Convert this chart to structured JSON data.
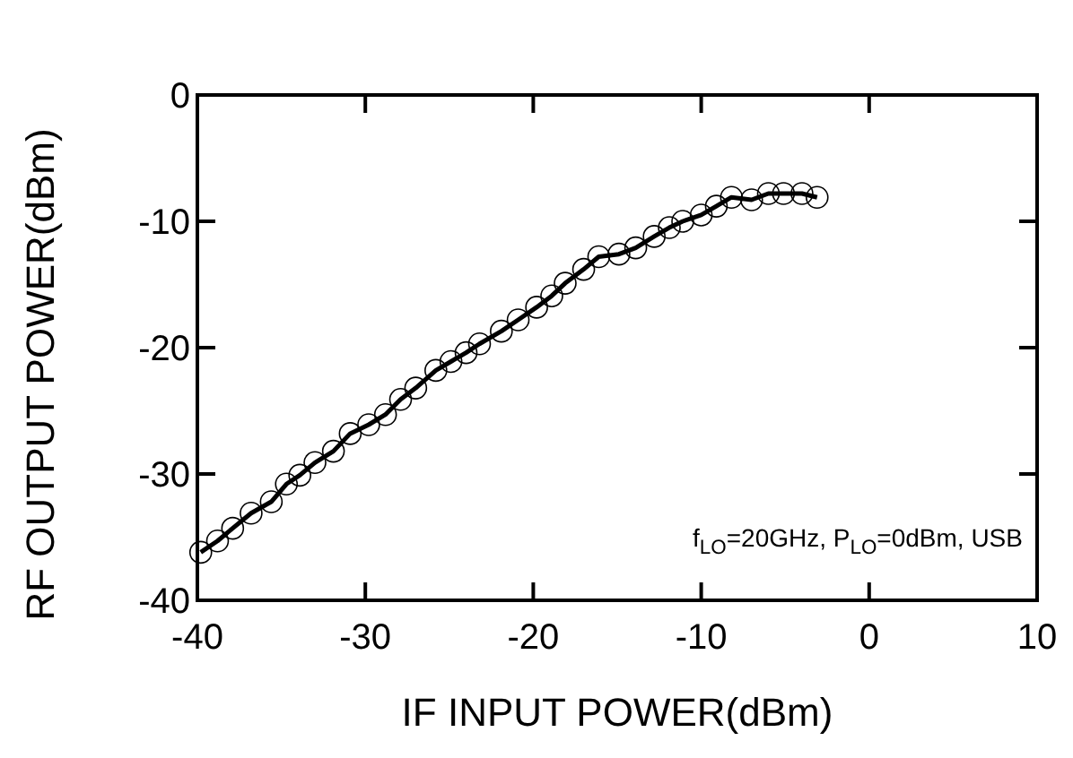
{
  "chart_data": {
    "type": "line",
    "xlabel": "IF INPUT POWER(dBm)",
    "ylabel": "RF OUTPUT POWER(dBm)",
    "x": [
      -39.8,
      -38.8,
      -37.9,
      -36.8,
      -35.6,
      -34.7,
      -33.9,
      -33,
      -31.9,
      -30.9,
      -29.8,
      -28.8,
      -27.9,
      -27,
      -25.8,
      -24.9,
      -24,
      -23.2,
      -21.9,
      -20.9,
      -19.8,
      -18.9,
      -18.1,
      -17,
      -16.1,
      -14.9,
      -13.9,
      -12.8,
      -11.9,
      -11.1,
      -10,
      -9.1,
      -8.2,
      -7,
      -6,
      -5.1,
      -4,
      -3.1
    ],
    "series": [
      {
        "color": "#000000",
        "values": [
          -36.2,
          -35.3,
          -34.3,
          -33.1,
          -32.2,
          -30.8,
          -30.1,
          -29.1,
          -28.2,
          -26.8,
          -26.1,
          -25.3,
          -24.1,
          -23.2,
          -21.8,
          -21.1,
          -20.4,
          -19.7,
          -18.7,
          -17.8,
          -16.8,
          -15.9,
          -14.9,
          -13.8,
          -12.8,
          -12.6,
          -12.1,
          -11.2,
          -10.5,
          -10,
          -9.5,
          -8.8,
          -8.1,
          -8.3,
          -7.8,
          -7.8,
          -7.8,
          -8.1
        ]
      }
    ],
    "xlim": [
      -40,
      10
    ],
    "xticks": [
      -40,
      -30,
      -20,
      -10,
      0,
      10
    ],
    "ylim": [
      -40,
      0
    ],
    "yticks": [
      -40,
      -30,
      -20,
      -10,
      0
    ],
    "grid": false,
    "marker": "circle",
    "line_style": "solid",
    "annotations": [
      "f$_{LO}$=20GHz, P$_{LO}$=0dBm, USB"
    ]
  }
}
